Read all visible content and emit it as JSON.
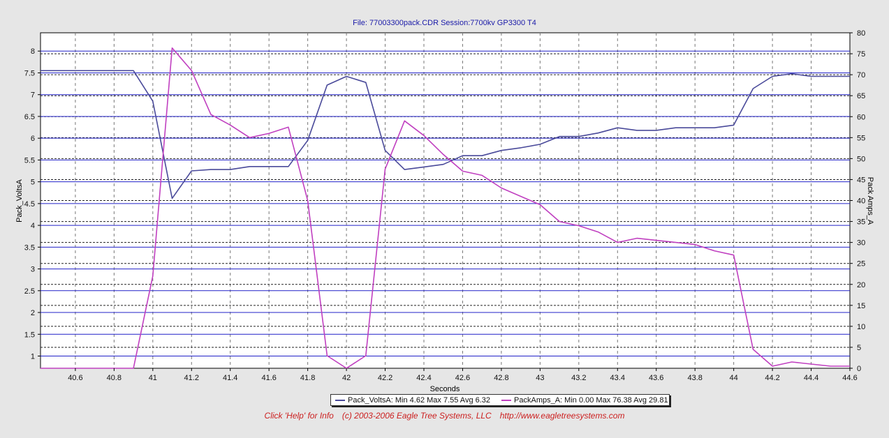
{
  "chart_data": {
    "type": "line",
    "title": "File: 77003300pack.CDR   Session:7700kv GP3300  T4",
    "xlabel": "Seconds",
    "y1label": "Pack_VoltsA",
    "y2label": "Pack Amps_A",
    "xlim": [
      40.42,
      44.6
    ],
    "y1lim": [
      0.72,
      8.42
    ],
    "y2lim": [
      0,
      80
    ],
    "grid": true,
    "x_ticks": [
      "40.6",
      "40.8",
      "41",
      "41.2",
      "41.4",
      "41.6",
      "41.8",
      "42",
      "42.2",
      "42.4",
      "42.6",
      "42.8",
      "43",
      "43.2",
      "43.4",
      "43.6",
      "43.8",
      "44",
      "44.2",
      "44.4",
      "44.6"
    ],
    "y1_ticks": [
      "1",
      "1.5",
      "2",
      "2.5",
      "3",
      "3.5",
      "4",
      "4.5",
      "5",
      "5.5",
      "6",
      "6.5",
      "7",
      "7.5",
      "8"
    ],
    "y2_ticks": [
      "0",
      "5",
      "10",
      "15",
      "20",
      "25",
      "30",
      "35",
      "40",
      "45",
      "50",
      "55",
      "60",
      "65",
      "70",
      "75",
      "80"
    ],
    "series": [
      {
        "name": "Pack_VoltsA",
        "axis": "left",
        "color": "#4a4a9a",
        "x": [
          40.42,
          40.9,
          41.0,
          41.1,
          41.2,
          41.3,
          41.4,
          41.5,
          41.6,
          41.7,
          41.8,
          41.9,
          42.0,
          42.1,
          42.2,
          42.3,
          42.4,
          42.5,
          42.6,
          42.7,
          42.8,
          42.9,
          43.0,
          43.1,
          43.2,
          43.3,
          43.4,
          43.5,
          43.6,
          43.7,
          43.8,
          43.9,
          44.0,
          44.1,
          44.2,
          44.3,
          44.4,
          44.5,
          44.6
        ],
        "y": [
          7.55,
          7.55,
          6.85,
          4.62,
          5.25,
          5.28,
          5.28,
          5.35,
          5.35,
          5.35,
          5.95,
          7.22,
          7.42,
          7.28,
          5.72,
          5.28,
          5.34,
          5.4,
          5.6,
          5.6,
          5.72,
          5.78,
          5.86,
          6.04,
          6.04,
          6.12,
          6.24,
          6.18,
          6.18,
          6.24,
          6.24,
          6.24,
          6.3,
          7.14,
          7.42,
          7.48,
          7.42,
          7.42,
          7.42
        ]
      },
      {
        "name": "PackAmps_A",
        "axis": "right",
        "color": "#c040c0",
        "x": [
          40.42,
          40.9,
          41.0,
          41.1,
          41.2,
          41.3,
          41.4,
          41.5,
          41.6,
          41.7,
          41.8,
          41.9,
          42.0,
          42.1,
          42.2,
          42.3,
          42.4,
          42.5,
          42.6,
          42.7,
          42.8,
          42.9,
          43.0,
          43.1,
          43.2,
          43.3,
          43.4,
          43.5,
          43.6,
          43.7,
          43.8,
          43.9,
          44.0,
          44.1,
          44.2,
          44.3,
          44.4,
          44.5,
          44.6
        ],
        "y": [
          0,
          0,
          22,
          76.38,
          71,
          60.5,
          58,
          55,
          56,
          57.5,
          40,
          3,
          0,
          3,
          47.5,
          59,
          55.5,
          51,
          47,
          46,
          43,
          41,
          39,
          35,
          34,
          32.5,
          30,
          31,
          30.5,
          30,
          29.5,
          28,
          27,
          4.5,
          0.5,
          1.5,
          1,
          0.5,
          0.5
        ]
      }
    ]
  },
  "legend": {
    "volts": "Pack_VoltsA:  Min 4.62 Max 7.55 Avg 6.32",
    "amps": "PackAmps_A:  Min 0.00 Max 76.38 Avg 29.81"
  },
  "footer": {
    "help": "Click 'Help' for Info",
    "copyright": "(c) 2003-2006 Eagle Tree Systems, LLC",
    "url": "http://www.eagletreesystems.com"
  }
}
